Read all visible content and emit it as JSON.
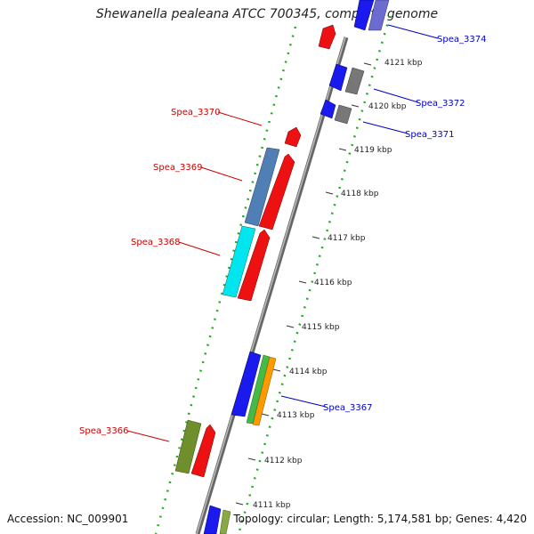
{
  "title": "Shewanella pealeana ATCC 700345, complete genome",
  "ticks": [
    "4121 kbp",
    "4120 kbp",
    "4119 kbp",
    "4118 kbp",
    "4117 kbp",
    "4116 kbp",
    "4115 kbp",
    "4114 kbp",
    "4113 kbp",
    "4112 kbp",
    "4111 kbp"
  ],
  "gene_labels": {
    "spea_3374": "Spea_3374",
    "spea_3372": "Spea_3372",
    "spea_3371": "Spea_3371",
    "spea_3370": "Spea_3370",
    "spea_3369": "Spea_3369",
    "spea_3368": "Spea_3368",
    "spea_3367": "Spea_3367",
    "spea_3366": "Spea_3366"
  },
  "colors": {
    "forward_label": "#0000cc",
    "reverse_label": "#cc0000",
    "backbone": "#888888",
    "dots": "#22aa22"
  },
  "footer": {
    "accession": "Accession: NC_009901",
    "stats": "Topology: circular; Length: 5,174,581 bp; Genes: 4,420"
  }
}
